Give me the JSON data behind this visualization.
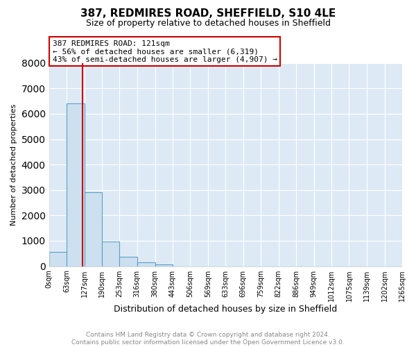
{
  "title": "387, REDMIRES ROAD, SHEFFIELD, S10 4LE",
  "subtitle": "Size of property relative to detached houses in Sheffield",
  "xlabel": "Distribution of detached houses by size in Sheffield",
  "ylabel": "Number of detached properties",
  "bar_edges": [
    0,
    63,
    127,
    190,
    253,
    316,
    380,
    443,
    506,
    569,
    633,
    696,
    759,
    822,
    886,
    949,
    1012,
    1075,
    1139,
    1202,
    1265
  ],
  "bar_heights": [
    550,
    6400,
    2900,
    970,
    370,
    160,
    80,
    0,
    0,
    0,
    0,
    0,
    0,
    0,
    0,
    0,
    0,
    0,
    0,
    0
  ],
  "property_size": 121,
  "bar_color": "#cce0f0",
  "bar_edge_color": "#5a9fc8",
  "vline_color": "#cc0000",
  "annotation_text": "387 REDMIRES ROAD: 121sqm\n← 56% of detached houses are smaller (6,319)\n43% of semi-detached houses are larger (4,907) →",
  "annotation_box_color": "#ffffff",
  "annotation_box_edge": "#cc0000",
  "ylim": [
    0,
    8000
  ],
  "tick_labels": [
    "0sqm",
    "63sqm",
    "127sqm",
    "190sqm",
    "253sqm",
    "316sqm",
    "380sqm",
    "443sqm",
    "506sqm",
    "569sqm",
    "633sqm",
    "696sqm",
    "759sqm",
    "822sqm",
    "886sqm",
    "949sqm",
    "1012sqm",
    "1075sqm",
    "1139sqm",
    "1202sqm",
    "1265sqm"
  ],
  "footer_line1": "Contains HM Land Registry data © Crown copyright and database right 2024.",
  "footer_line2": "Contains public sector information licensed under the Open Government Licence v3.0.",
  "bg_color": "#ffffff",
  "plot_bg_color": "#ddeaf5",
  "grid_color": "#ffffff",
  "title_fontsize": 11,
  "subtitle_fontsize": 9,
  "ylabel_fontsize": 8,
  "xlabel_fontsize": 9,
  "tick_fontsize": 7,
  "annot_fontsize": 8,
  "footer_fontsize": 6.5,
  "footer_color": "#888888"
}
